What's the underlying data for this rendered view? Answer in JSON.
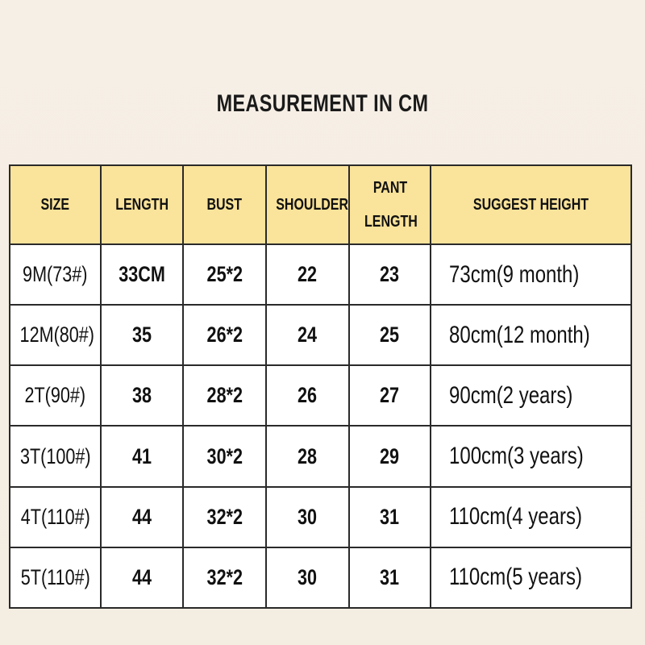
{
  "title": "MEASUREMENT IN CM",
  "table": {
    "headers": [
      "SIZE",
      "LENGTH",
      "BUST",
      "SHOULDER",
      "PANT LENGTH",
      "SUGGEST HEIGHT"
    ],
    "header_color": "#fae39a",
    "rows": [
      [
        "9M(73#)",
        "33CM",
        "25*2",
        "22",
        "23",
        "73cm(9 month)"
      ],
      [
        "12M(80#)",
        "35",
        "26*2",
        "24",
        "25",
        "80cm(12 month)"
      ],
      [
        "2T(90#)",
        "38",
        "28*2",
        "26",
        "27",
        "90cm(2 years)"
      ],
      [
        "3T(100#)",
        "41",
        "30*2",
        "28",
        "29",
        "100cm(3 years)"
      ],
      [
        "4T(110#)",
        "44",
        "32*2",
        "30",
        "31",
        "110cm(4 years)"
      ],
      [
        "5T(110#)",
        "44",
        "32*2",
        "30",
        "31",
        "110cm(5 years)"
      ]
    ]
  }
}
